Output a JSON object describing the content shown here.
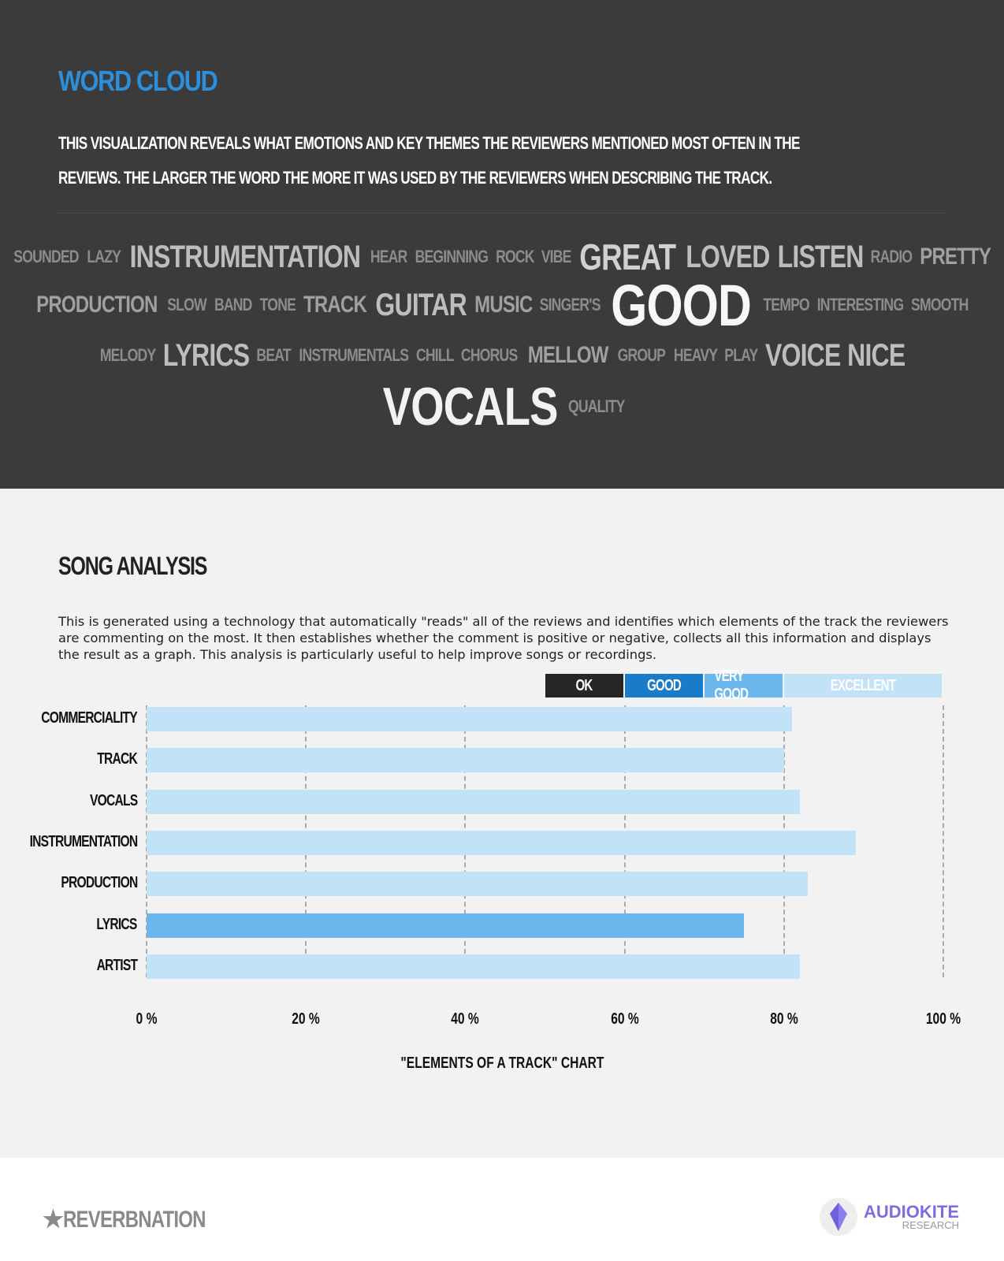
{
  "word_cloud": {
    "title": "WORD CLOUD",
    "description": "This visualization reveals what emotions and key themes the reviewers mentioned most often in the reviews. The larger the word the more it was used by the reviewers when describing the track.",
    "rows": [
      [
        [
          "SOUNDED",
          1
        ],
        [
          "LAZY",
          1
        ],
        [
          "INSTRUMENTATION",
          3
        ],
        [
          "HEAR",
          1
        ],
        [
          "BEGINNING",
          1
        ],
        [
          "ROCK",
          1
        ],
        [
          "VIBE",
          1
        ],
        [
          "GREAT",
          4
        ],
        [
          "LOVED",
          3
        ],
        [
          "LISTEN",
          3
        ],
        [
          "RADIO",
          1
        ],
        [
          "PRETTY",
          2
        ]
      ],
      [
        [
          "PRODUCTION",
          2
        ],
        [
          "SLOW",
          1
        ],
        [
          "BAND",
          1
        ],
        [
          "TONE",
          1
        ],
        [
          "TRACK",
          2
        ],
        [
          "GUITAR",
          3
        ],
        [
          "MUSIC",
          2
        ],
        [
          "SINGER'S",
          1
        ],
        [
          "GOOD",
          6
        ],
        [
          "TEMPO",
          1
        ],
        [
          "INTERESTING",
          1
        ],
        [
          "SMOOTH",
          1
        ]
      ],
      [
        [
          "MELODY",
          1
        ],
        [
          "LYRICS",
          3
        ],
        [
          "BEAT",
          1
        ],
        [
          "INSTRUMENTALS",
          1
        ],
        [
          "CHILL",
          1
        ],
        [
          "CHORUS",
          1
        ],
        [
          "MELLOW",
          2
        ],
        [
          "GROUP",
          1
        ],
        [
          "HEAVY",
          1
        ],
        [
          "PLAY",
          1
        ],
        [
          "VOICE",
          3
        ],
        [
          "NICE",
          3
        ]
      ],
      [
        [
          "VOCALS",
          5
        ],
        [
          "QUALITY",
          1
        ]
      ]
    ]
  },
  "song_analysis": {
    "title": "SONG ANALYSIS",
    "description": "This is generated using a technology that automatically \"reads\" all of the reviews and identifies which elements of the track the reviewers are commenting on the most. It then establishes whether the comment is positive or negative, collects all this information and displays the result as a graph. This analysis is particularly useful to help improve songs or recordings."
  },
  "chart_data": {
    "type": "bar",
    "orientation": "horizontal",
    "title": "\"ELEMENTS OF A TRACK\" CHART",
    "categories": [
      "COMMERCIALITY",
      "TRACK",
      "VOCALS",
      "INSTRUMENTATION",
      "PRODUCTION",
      "LYRICS",
      "ARTIST"
    ],
    "values": [
      81,
      80,
      82,
      89,
      83,
      75,
      82
    ],
    "xlim": [
      0,
      100
    ],
    "x_ticks": [
      "0 %",
      "20 %",
      "40 %",
      "60 %",
      "80 %",
      "100 %"
    ],
    "grid": true,
    "legend_position": "top-right",
    "bands": [
      {
        "label": "OK",
        "from": 50,
        "to": 60,
        "color": "#262626"
      },
      {
        "label": "GOOD",
        "from": 60,
        "to": 70,
        "color": "#1a7bc8"
      },
      {
        "label": "VERY GOOD",
        "from": 70,
        "to": 80,
        "color": "#6cb8ee"
      },
      {
        "label": "EXCELLENT",
        "from": 80,
        "to": 100,
        "color": "#c2e3f7"
      }
    ]
  },
  "footer": {
    "left_brand": "REVERBNATION",
    "right_brand": "AUDIOKITE",
    "right_sub": "RESEARCH"
  }
}
